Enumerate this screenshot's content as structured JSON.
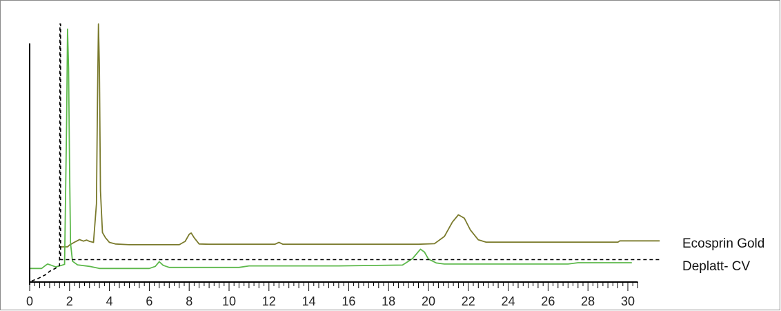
{
  "chart_data": {
    "type": "line",
    "title": "",
    "xlabel": "",
    "ylabel": "",
    "xlim": [
      0,
      30.5
    ],
    "ylim": [
      0,
      100
    ],
    "x_ticks": [
      "0",
      "2",
      "4",
      "6",
      "8",
      "10",
      "12",
      "14",
      "16",
      "18",
      "20",
      "22",
      "24",
      "26",
      "28",
      "30"
    ],
    "grid": false,
    "series": [
      {
        "name": "Ecosprin Gold",
        "color": "#7a7a2c",
        "points": [
          [
            1.5,
            13.5
          ],
          [
            1.9,
            13.5
          ],
          [
            2.0,
            14.2
          ],
          [
            2.3,
            15.5
          ],
          [
            2.5,
            16.3
          ],
          [
            2.7,
            15.7
          ],
          [
            2.85,
            16.1
          ],
          [
            3.0,
            15.6
          ],
          [
            3.2,
            15.2
          ],
          [
            3.35,
            30
          ],
          [
            3.4,
            70
          ],
          [
            3.45,
            99
          ],
          [
            3.5,
            82
          ],
          [
            3.55,
            35
          ],
          [
            3.65,
            19
          ],
          [
            3.8,
            17
          ],
          [
            4.0,
            15.2
          ],
          [
            4.3,
            14.6
          ],
          [
            5.0,
            14.3
          ],
          [
            7.5,
            14.3
          ],
          [
            7.8,
            15.6
          ],
          [
            8.0,
            18.3
          ],
          [
            8.1,
            18.8
          ],
          [
            8.25,
            17
          ],
          [
            8.5,
            14.6
          ],
          [
            9.0,
            14.5
          ],
          [
            12.3,
            14.5
          ],
          [
            12.5,
            15.2
          ],
          [
            12.7,
            14.5
          ],
          [
            19.5,
            14.5
          ],
          [
            20.3,
            14.7
          ],
          [
            20.8,
            17.5
          ],
          [
            21.2,
            23
          ],
          [
            21.5,
            25.8
          ],
          [
            21.8,
            24.5
          ],
          [
            22.1,
            20
          ],
          [
            22.5,
            16.2
          ],
          [
            22.9,
            15.3
          ],
          [
            27.5,
            15.3
          ],
          [
            29.5,
            15.3
          ],
          [
            29.6,
            15.8
          ],
          [
            31.6,
            15.8
          ]
        ]
      },
      {
        "name": "Deplatt- CV",
        "color": "#5cb84a",
        "points": [
          [
            0,
            5.2
          ],
          [
            0.6,
            5.2
          ],
          [
            0.8,
            6.4
          ],
          [
            0.9,
            6.9
          ],
          [
            1.1,
            6.4
          ],
          [
            1.3,
            5.8
          ],
          [
            1.6,
            6.4
          ],
          [
            1.75,
            6.8
          ],
          [
            1.85,
            60
          ],
          [
            1.9,
            97
          ],
          [
            1.95,
            82
          ],
          [
            2.0,
            45
          ],
          [
            2.05,
            15
          ],
          [
            2.15,
            8
          ],
          [
            2.4,
            6.6
          ],
          [
            3.0,
            6
          ],
          [
            3.5,
            5.2
          ],
          [
            6.0,
            5.2
          ],
          [
            6.3,
            6
          ],
          [
            6.5,
            7.8
          ],
          [
            6.7,
            6.4
          ],
          [
            7.0,
            5.6
          ],
          [
            8.0,
            5.6
          ],
          [
            10.5,
            5.6
          ],
          [
            11.0,
            6.2
          ],
          [
            12.5,
            6.2
          ],
          [
            15.5,
            6.2
          ],
          [
            18.7,
            6.5
          ],
          [
            19.2,
            9
          ],
          [
            19.6,
            12.6
          ],
          [
            19.8,
            11.5
          ],
          [
            20.0,
            8.8
          ],
          [
            20.4,
            7.3
          ],
          [
            20.8,
            6.9
          ],
          [
            27.0,
            6.9
          ],
          [
            27.5,
            7.4
          ],
          [
            30.2,
            7.4
          ]
        ]
      },
      {
        "name": "",
        "color": "#000000",
        "dashed": true,
        "points": [
          [
            0.1,
            0.4
          ],
          [
            0.4,
            1.3
          ],
          [
            0.8,
            2.8
          ],
          [
            1.0,
            4.1
          ],
          [
            1.3,
            5.3
          ],
          [
            1.5,
            6.3
          ],
          [
            1.52,
            99
          ],
          [
            1.55,
            99
          ],
          [
            1.55,
            8.6
          ],
          [
            31.6,
            8.6
          ]
        ]
      }
    ],
    "legend": [
      "Ecosprin Gold",
      "Deplatt- CV"
    ]
  }
}
